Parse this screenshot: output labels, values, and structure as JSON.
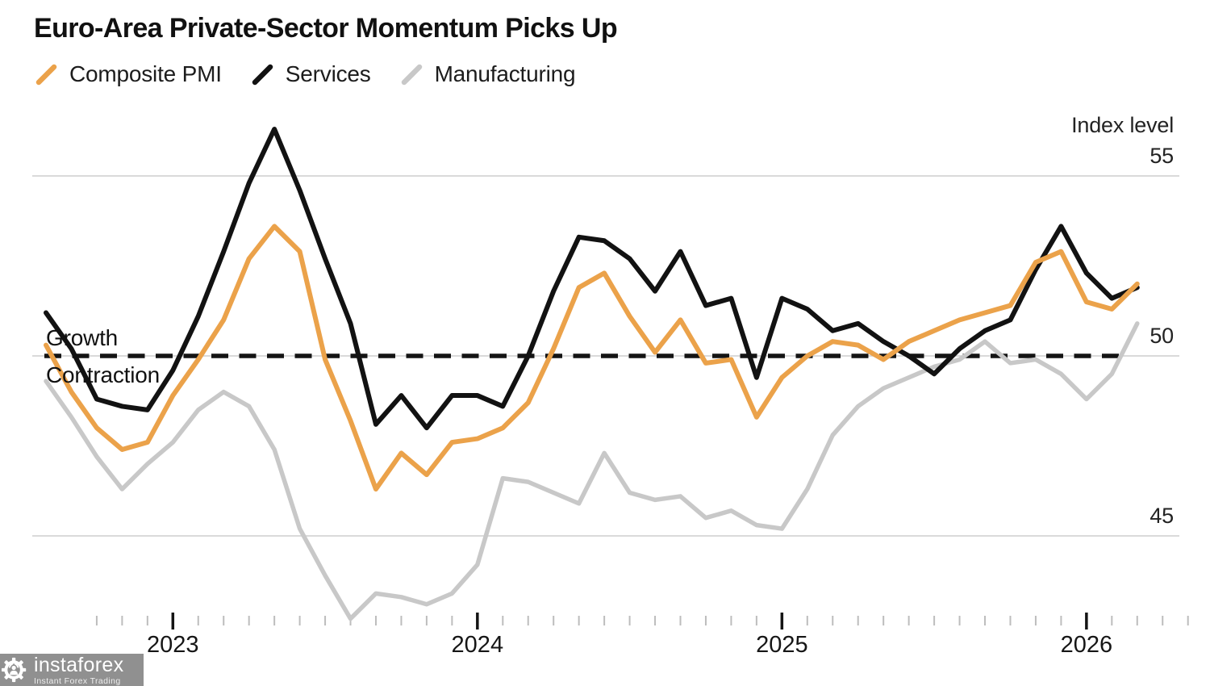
{
  "title": "Euro-Area Private-Sector Momentum Picks Up",
  "legend": [
    {
      "label": "Composite PMI",
      "color": "#EBA24A"
    },
    {
      "label": "Services",
      "color": "#121212"
    },
    {
      "label": "Manufacturing",
      "color": "#C8C8C8"
    }
  ],
  "axis": {
    "unit_label": "Index level",
    "y_ticks": [
      "55",
      "50",
      "45"
    ],
    "x_ticks": [
      "2023",
      "2024",
      "2025",
      "2026"
    ],
    "growth_label": "Growth",
    "contraction_label": "Contraction"
  },
  "watermark": {
    "name": "instaforex",
    "tagline": "Instant Forex Trading"
  },
  "chart_data": {
    "type": "line",
    "title": "Euro-Area Private-Sector Momentum Picks Up",
    "ylabel": "Index level",
    "ylim": [
      41.5,
      57.5
    ],
    "baseline": 50,
    "grid": "horizontal",
    "legend_position": "top-left",
    "gridline_values": [
      55,
      50,
      45
    ],
    "x_monthly": [
      "2022-08",
      "2022-09",
      "2022-10",
      "2022-11",
      "2022-12",
      "2023-01",
      "2023-02",
      "2023-03",
      "2023-04",
      "2023-05",
      "2023-06",
      "2023-07",
      "2023-08",
      "2023-09",
      "2023-10",
      "2023-11",
      "2023-12",
      "2024-01",
      "2024-02",
      "2024-03",
      "2024-04",
      "2024-05",
      "2024-06",
      "2024-07",
      "2024-08",
      "2024-09",
      "2024-10",
      "2024-11",
      "2024-12",
      "2025-01",
      "2025-02",
      "2025-03",
      "2025-04",
      "2025-05",
      "2025-06",
      "2025-07",
      "2025-08",
      "2025-09",
      "2025-10",
      "2025-11",
      "2025-12",
      "2026-01",
      "2026-02",
      "2026-03"
    ],
    "series": [
      {
        "name": "Manufacturing",
        "color": "#C8C8C8",
        "width": 5.5,
        "values": [
          49.3,
          48.3,
          47.2,
          46.3,
          47.0,
          47.6,
          48.5,
          49.0,
          48.6,
          47.4,
          45.2,
          43.9,
          42.7,
          43.4,
          43.3,
          43.1,
          43.4,
          44.2,
          46.6,
          46.5,
          46.2,
          45.9,
          47.3,
          46.2,
          46.0,
          46.1,
          45.5,
          45.7,
          45.3,
          45.2,
          46.3,
          47.8,
          48.6,
          49.1,
          49.4,
          49.7,
          49.9,
          50.4,
          49.8,
          49.9,
          49.5,
          48.8,
          49.5,
          50.9
        ]
      },
      {
        "name": "Services",
        "color": "#121212",
        "width": 6,
        "values": [
          51.2,
          50.2,
          48.8,
          48.6,
          48.5,
          49.6,
          51.1,
          52.9,
          54.8,
          56.3,
          54.6,
          52.7,
          50.9,
          48.1,
          48.9,
          48.0,
          48.9,
          48.9,
          48.6,
          50.0,
          51.8,
          53.3,
          53.2,
          52.7,
          51.8,
          52.9,
          51.4,
          51.6,
          49.4,
          51.6,
          51.3,
          50.7,
          50.9,
          50.4,
          50.0,
          49.5,
          50.2,
          50.7,
          51.0,
          52.4,
          53.6,
          52.3,
          51.6,
          51.9
        ]
      },
      {
        "name": "Composite PMI",
        "color": "#EBA24A",
        "width": 6,
        "values": [
          50.3,
          49.0,
          48.0,
          47.4,
          47.6,
          48.9,
          49.9,
          51.0,
          52.7,
          53.6,
          52.9,
          49.9,
          48.2,
          46.3,
          47.3,
          46.7,
          47.6,
          47.7,
          48.0,
          48.7,
          50.2,
          51.9,
          52.3,
          51.1,
          50.1,
          51.0,
          49.8,
          49.9,
          48.3,
          49.4,
          50.0,
          50.4,
          50.3,
          49.9,
          50.4,
          50.7,
          51.0,
          51.2,
          51.4,
          52.6,
          52.9,
          51.5,
          51.3,
          52.0
        ]
      }
    ]
  }
}
